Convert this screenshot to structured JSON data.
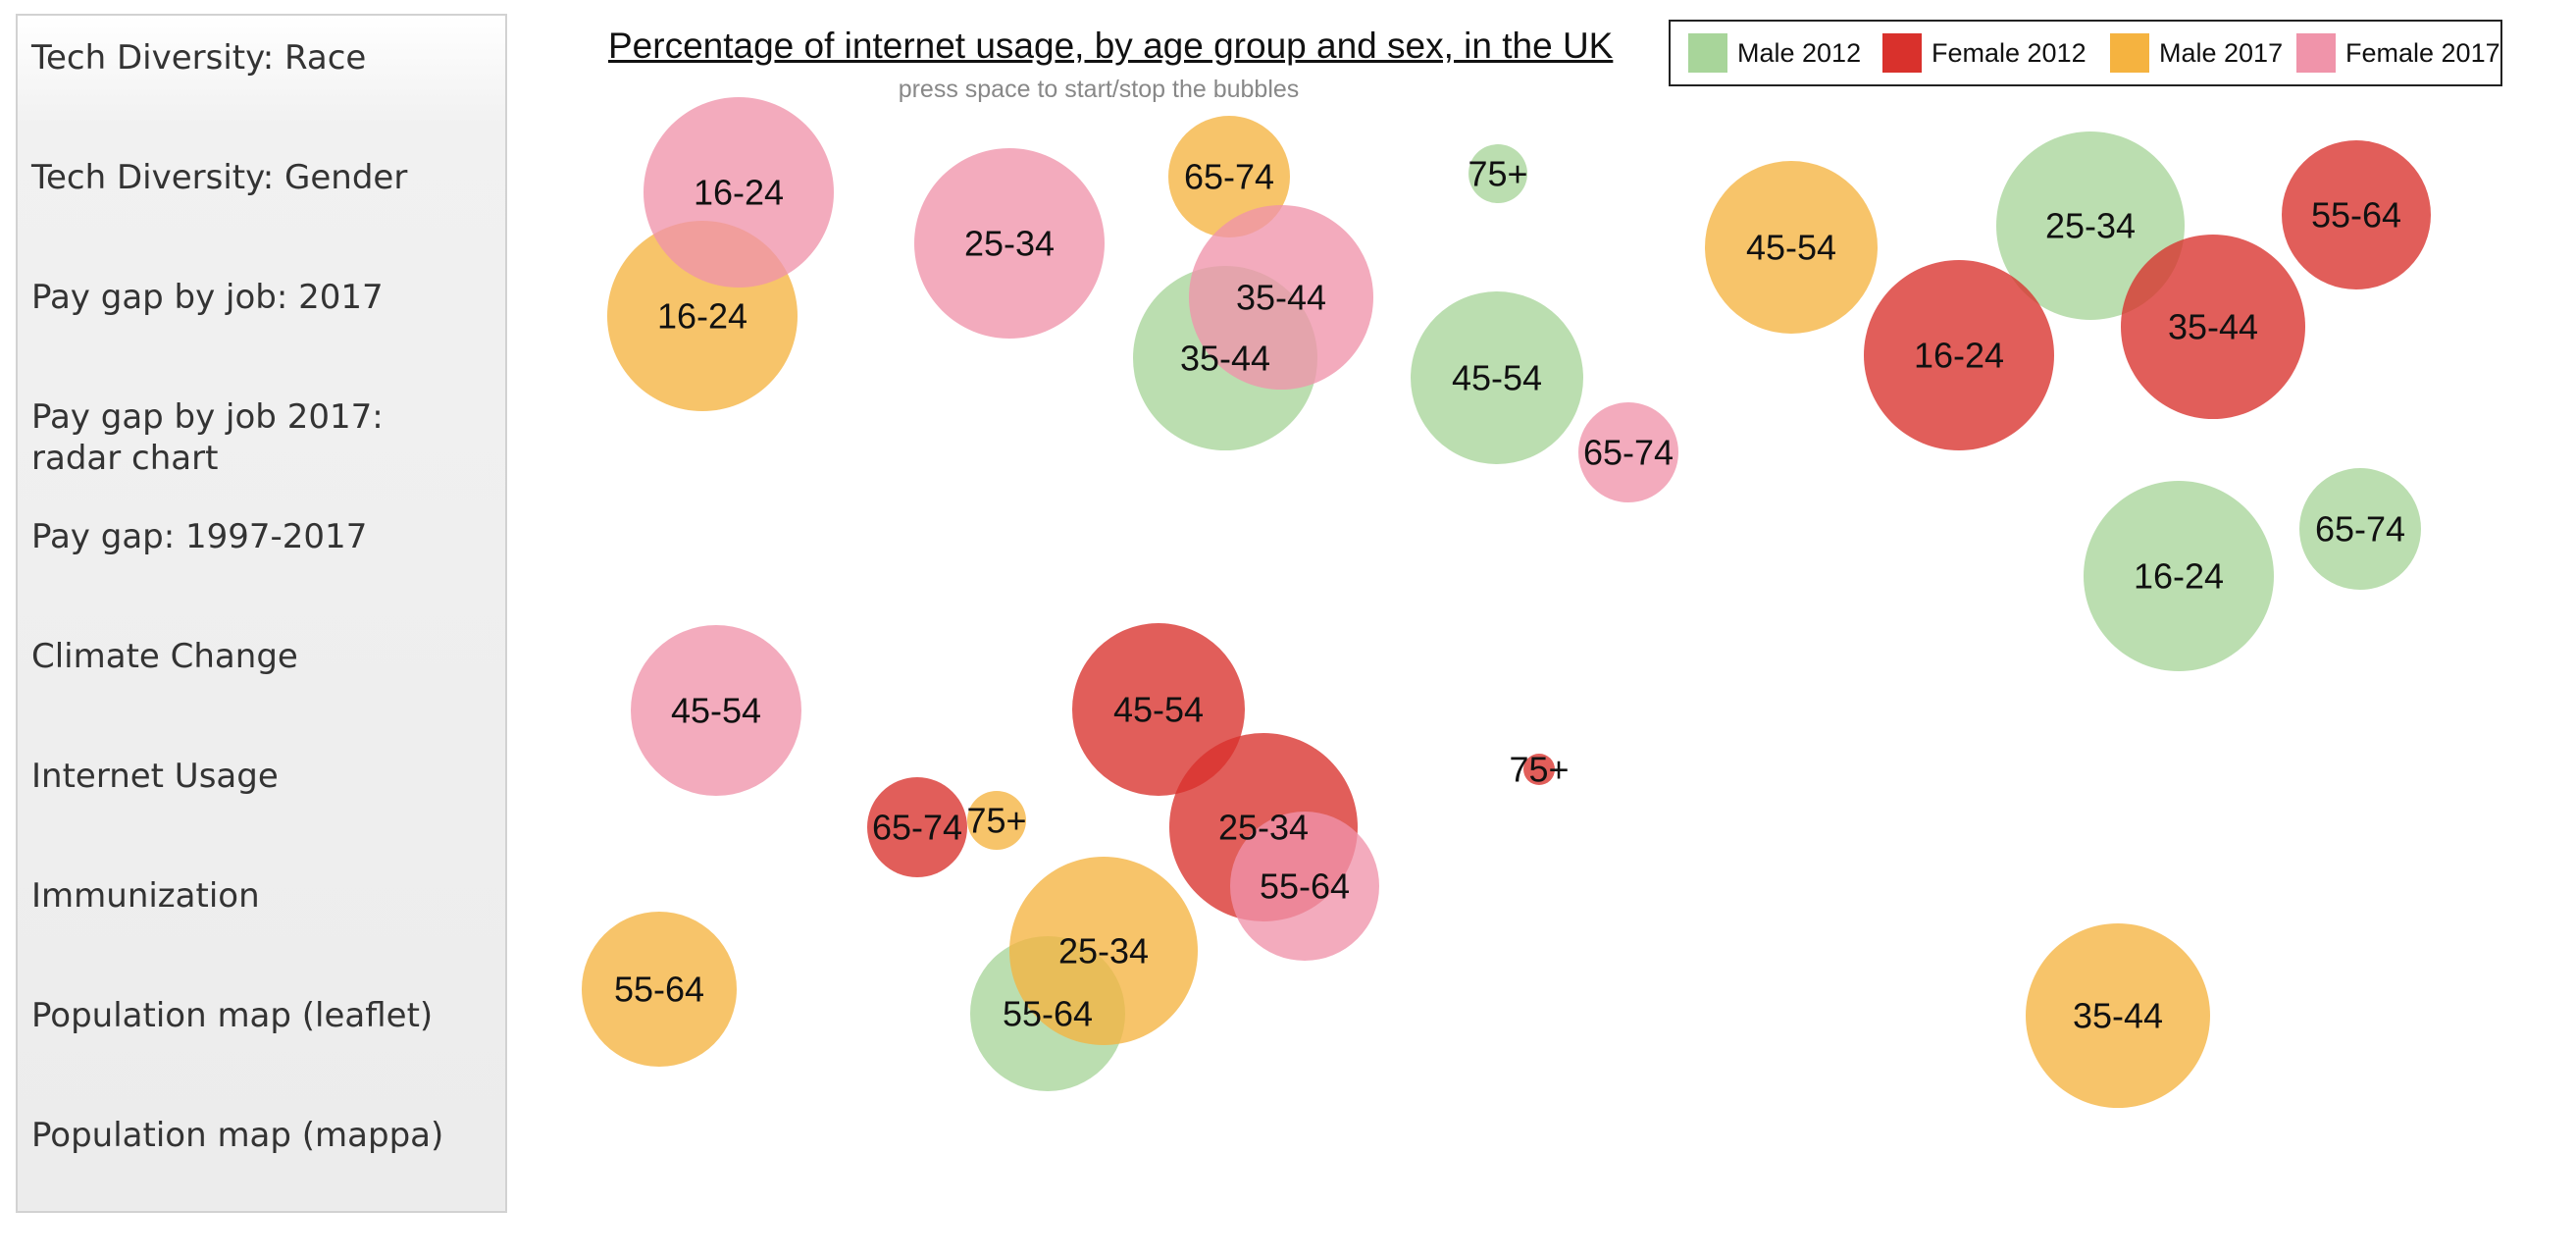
{
  "sidebar": {
    "items": [
      {
        "label": "Tech Diversity: Race"
      },
      {
        "label": "Tech Diversity: Gender"
      },
      {
        "label": "Pay gap by job: 2017"
      },
      {
        "label": "Pay gap by job 2017: radar chart"
      },
      {
        "label": "Pay gap: 1997-2017"
      },
      {
        "label": "Climate Change"
      },
      {
        "label": "Internet Usage"
      },
      {
        "label": "Immunization"
      },
      {
        "label": "Population map (leaflet)"
      },
      {
        "label": "Population map (mappa)"
      }
    ]
  },
  "chart_data": {
    "type": "scatter",
    "title": "Percentage of internet usage, by age group and sex, in the UK",
    "subtitle": "press space to start/stop the bubbles",
    "legend_position": "top-right",
    "series": [
      {
        "name": "Male 2012",
        "color": "#a8d59a",
        "bubbles": [
          "25-34",
          "35-44",
          "45-54",
          "16-24",
          "65-74",
          "75+",
          "55-64"
        ]
      },
      {
        "name": "Female 2012",
        "color": "#d9312c",
        "bubbles": [
          "16-24",
          "35-44",
          "55-64",
          "45-54",
          "25-34",
          "65-74",
          "75+"
        ]
      },
      {
        "name": "Male 2017",
        "color": "#f5b340",
        "bubbles": [
          "16-24",
          "65-74",
          "45-54",
          "55-64",
          "75+",
          "25-34",
          "35-44"
        ]
      },
      {
        "name": "Female 2017",
        "color": "#f094aa",
        "bubbles": [
          "16-24",
          "25-34",
          "35-44",
          "65-74",
          "45-54",
          "55-64"
        ]
      }
    ]
  }
}
